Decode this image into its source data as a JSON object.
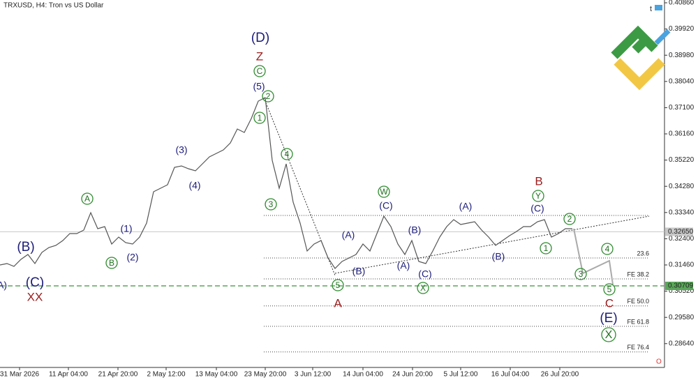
{
  "chart_data": {
    "type": "line",
    "title": "TRXUSD, H4:  Tron vs US Dollar",
    "ylim": [
      0.27785,
      0.4096
    ],
    "xlim": [
      0,
      95.2
    ],
    "yticks": [
      {
        "value": 0.4086,
        "label": "0.40860"
      },
      {
        "value": 0.3992,
        "label": "0.39920"
      },
      {
        "value": 0.3898,
        "label": "0.38980"
      },
      {
        "value": 0.3804,
        "label": "0.38040"
      },
      {
        "value": 0.371,
        "label": "0.37100"
      },
      {
        "value": 0.3616,
        "label": "0.36160"
      },
      {
        "value": 0.3522,
        "label": "0.35220"
      },
      {
        "value": 0.3428,
        "label": "0.34280"
      },
      {
        "value": 0.3334,
        "label": "0.33340"
      },
      {
        "value": 0.324,
        "label": "0.32400"
      },
      {
        "value": 0.3146,
        "label": "0.31460"
      },
      {
        "value": 0.3052,
        "label": "0.30520"
      },
      {
        "value": 0.2958,
        "label": "0.29580"
      },
      {
        "value": 0.2864,
        "label": "0.28640"
      }
    ],
    "xticks": [
      {
        "value": 2.8,
        "label": "31 Mar 2026"
      },
      {
        "value": 9.8,
        "label": "11 Apr 04:00"
      },
      {
        "value": 16.9,
        "label": "21 Apr 20:00"
      },
      {
        "value": 23.8,
        "label": "2 May 12:00"
      },
      {
        "value": 31.0,
        "label": "13 May 04:00"
      },
      {
        "value": 38.0,
        "label": "23 May 20:00"
      },
      {
        "value": 44.8,
        "label": "3 Jun 12:00"
      },
      {
        "value": 52.0,
        "label": "14 Jun 04:00"
      },
      {
        "value": 59.1,
        "label": "24 Jun 20:00"
      },
      {
        "value": 66.0,
        "label": "5 Jul 12:00"
      },
      {
        "value": 73.1,
        "label": "16 Jul 04:00"
      },
      {
        "value": 80.2,
        "label": "26 Jul 20:00"
      }
    ],
    "series": [
      {
        "color": "#555555",
        "values": [
          0.3146,
          0.3151,
          0.3141,
          0.3166,
          0.31835,
          0.3151,
          0.3191,
          0.32085,
          0.3216,
          0.32335,
          0.32585,
          0.32585,
          0.3271,
          0.33335,
          0.3276,
          0.32835,
          0.3221,
          0.3246,
          0.3226,
          0.3221,
          0.3246,
          0.3296,
          0.34085,
          0.3421,
          0.34335,
          0.3496,
          0.3501,
          0.3491,
          0.34835,
          0.35085,
          0.35335,
          0.3546,
          0.35585,
          0.35835,
          0.36335,
          0.3621,
          0.3671,
          0.37335,
          0.3746,
          0.3521,
          0.3421,
          0.35085,
          0.3371,
          0.3296,
          0.3196,
          0.3221,
          0.32335,
          0.3171,
          0.31335,
          0.31585,
          0.3171,
          0.31835,
          0.3221,
          0.3196,
          0.32585,
          0.3321,
          0.32835,
          0.3221,
          0.31835,
          0.32335,
          0.31585,
          0.3151,
          0.3196,
          0.3246,
          0.32835,
          0.33085,
          0.3291,
          0.3296,
          0.3301,
          0.3271,
          0.3246,
          0.3216,
          0.32335,
          0.3251,
          0.3266,
          0.32835,
          0.32835,
          0.3301,
          0.33085,
          0.3246,
          0.32585,
          0.3276,
          0.3276
        ]
      },
      {
        "color": "#aaaaaa",
        "x": [
          82.2,
          83.5,
          87.3,
          87.8
        ],
        "values": [
          0.3276,
          0.3116,
          0.3161,
          0.3076
        ]
      }
    ],
    "price_lines": [
      {
        "value": 0.3265,
        "label": "0.32650",
        "color": "#c8c8c8"
      },
      {
        "value": 0.30709,
        "label": "0.30709",
        "color": "#5aa55a"
      }
    ],
    "levels": [
      {
        "value": 0.33235
      },
      {
        "value": 0.3171,
        "label": "23.6"
      },
      {
        "value": 0.3096,
        "label": "FE 38.2"
      },
      {
        "value": 0.2999,
        "label": "FE 50.0"
      },
      {
        "value": 0.2926,
        "label": "FE 61.8"
      },
      {
        "value": 0.2834,
        "label": "FE 76.4"
      }
    ],
    "annotations": [
      {
        "text": "(D)"
      },
      {
        "text": "Z"
      },
      {
        "text": "C"
      },
      {
        "text": "(5)"
      },
      {
        "text": "2"
      },
      {
        "text": "1"
      },
      {
        "text": "4"
      },
      {
        "text": "3"
      },
      {
        "text": "(3)"
      },
      {
        "text": "(4)"
      },
      {
        "text": "(1)"
      },
      {
        "text": "(2)"
      },
      {
        "text": "A"
      },
      {
        "text": "B"
      },
      {
        "text": "(B)"
      },
      {
        "text": "(C)"
      },
      {
        "text": "XX"
      },
      {
        "text": "A)"
      },
      {
        "text": "5"
      },
      {
        "text": "A"
      },
      {
        "text": "(A)"
      },
      {
        "text": "(B)"
      },
      {
        "text": "W"
      },
      {
        "text": "(C)"
      },
      {
        "text": "(B)"
      },
      {
        "text": "(A)"
      },
      {
        "text": "(C)"
      },
      {
        "text": "X"
      },
      {
        "text": "(A)"
      },
      {
        "text": "(B)"
      },
      {
        "text": "B"
      },
      {
        "text": "Y"
      },
      {
        "text": "(C)"
      },
      {
        "text": "2"
      },
      {
        "text": "1"
      },
      {
        "text": "4"
      },
      {
        "text": "3"
      },
      {
        "text": "5"
      },
      {
        "text": "C"
      },
      {
        "text": "(E)"
      },
      {
        "text": "X"
      }
    ]
  }
}
